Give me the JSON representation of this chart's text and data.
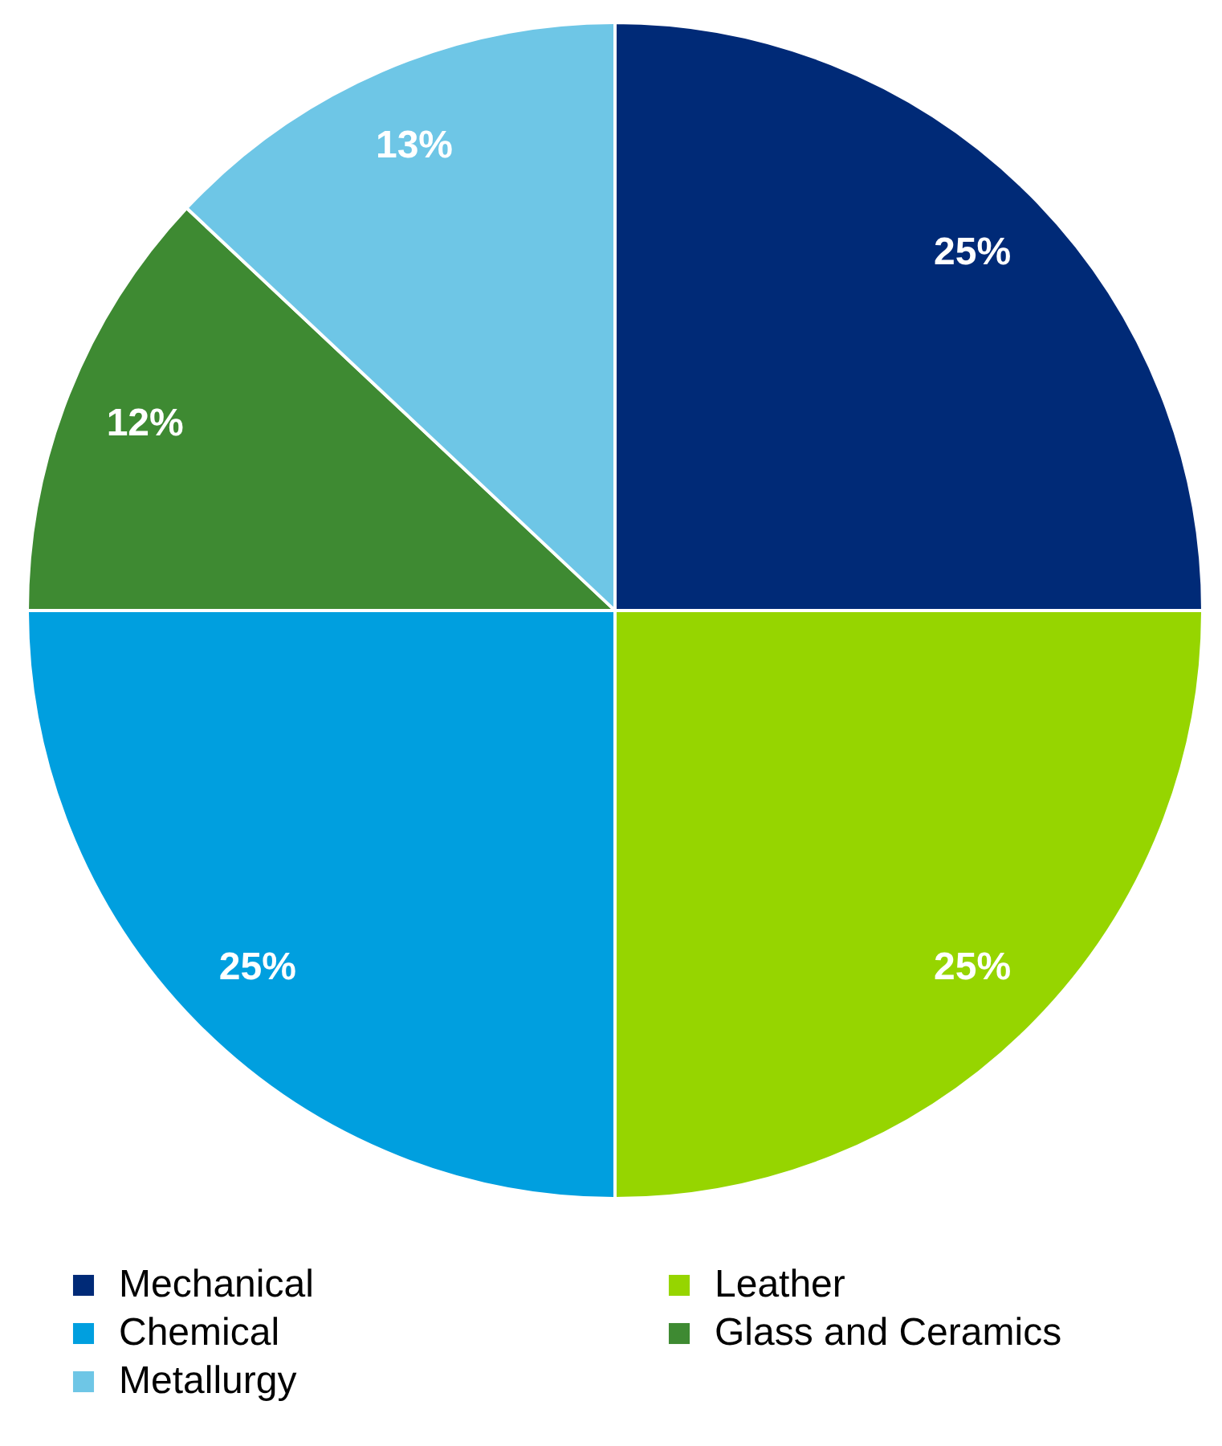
{
  "chart_data": {
    "type": "pie",
    "categories": [
      "Mechanical",
      "Leather",
      "Chemical",
      "Glass and Ceramics",
      "Metallurgy"
    ],
    "values": [
      25,
      25,
      25,
      12,
      13
    ],
    "colors": [
      "#002a77",
      "#96d500",
      "#009fdf",
      "#3e8a32",
      "#6ec6e6"
    ],
    "value_labels": [
      "25%",
      "25%",
      "25%",
      "12%",
      "13%"
    ],
    "legend": "bottom"
  }
}
